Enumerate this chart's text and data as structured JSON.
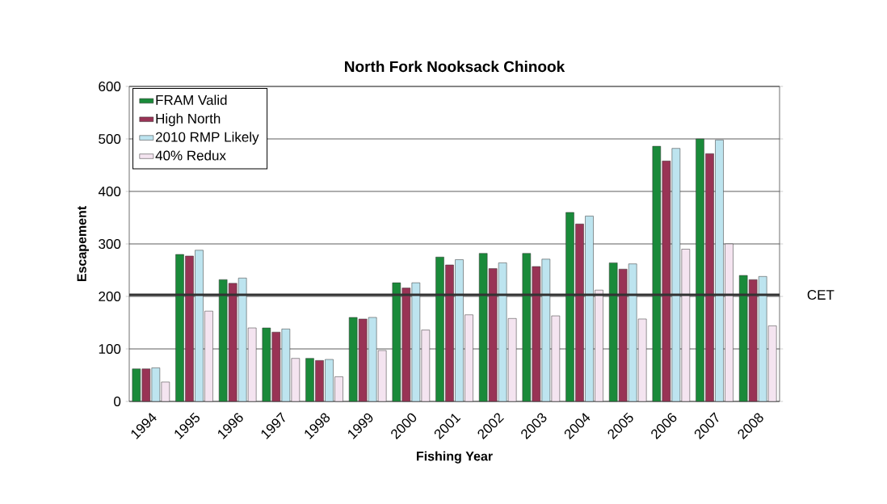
{
  "chart_data": {
    "type": "bar",
    "title": "North Fork Nooksack Chinook",
    "xlabel": "Fishing Year",
    "ylabel": "Escapement",
    "categories": [
      "1994",
      "1995",
      "1996",
      "1997",
      "1998",
      "1999",
      "2000",
      "2001",
      "2002",
      "2003",
      "2004",
      "2005",
      "2006",
      "2007",
      "2008"
    ],
    "series": [
      {
        "name": "FRAM Valid",
        "color": "#1a8a3a",
        "values": [
          62,
          280,
          232,
          140,
          82,
          160,
          226,
          275,
          282,
          282,
          360,
          264,
          486,
          500,
          240
        ]
      },
      {
        "name": "High North",
        "color": "#993355",
        "values": [
          62,
          277,
          225,
          132,
          78,
          157,
          216,
          260,
          253,
          257,
          338,
          252,
          458,
          472,
          232
        ]
      },
      {
        "name": "2010 RMP Likely",
        "color": "#bde4ef",
        "values": [
          64,
          288,
          235,
          138,
          80,
          160,
          226,
          270,
          264,
          271,
          353,
          262,
          482,
          498,
          238
        ]
      },
      {
        "name": "40% Redux",
        "color": "#f4e4f0",
        "values": [
          37,
          172,
          140,
          82,
          47,
          97,
          136,
          165,
          158,
          163,
          212,
          157,
          290,
          300,
          144
        ]
      }
    ],
    "ylim": [
      0,
      600
    ],
    "yticks": [
      0,
      100,
      200,
      300,
      400,
      500,
      600
    ],
    "grid": "y",
    "legend": "top left",
    "ref_lines": [
      {
        "axis": "y",
        "value": 203,
        "label": "CET",
        "color": "#333333"
      }
    ]
  }
}
